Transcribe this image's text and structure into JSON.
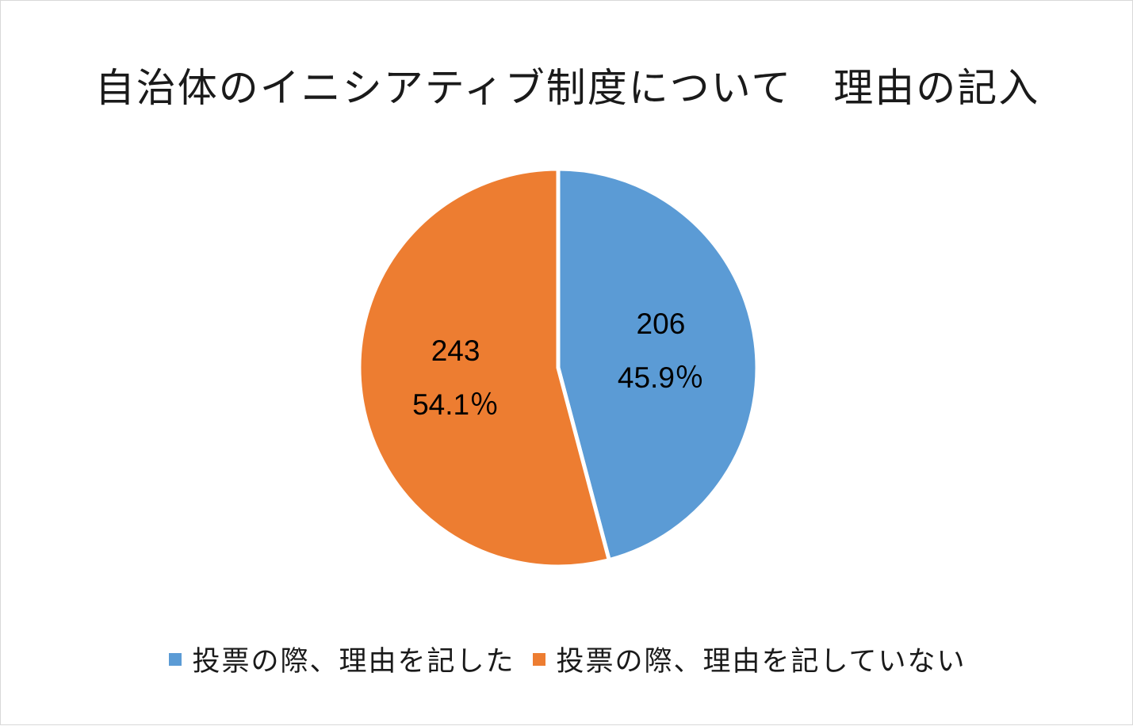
{
  "chart_data": {
    "type": "pie",
    "title": "自治体のイニシアティブ制度について　理由の記入",
    "categories": [
      "投票の際、理由を記した",
      "投票の際、理由を記していない"
    ],
    "values": [
      206,
      243
    ],
    "percent_labels": [
      "45.9％",
      "54.1％"
    ],
    "value_labels": [
      "206",
      "243"
    ],
    "colors": [
      "#5b9bd5",
      "#ed7d31"
    ],
    "legend_position": "bottom"
  }
}
